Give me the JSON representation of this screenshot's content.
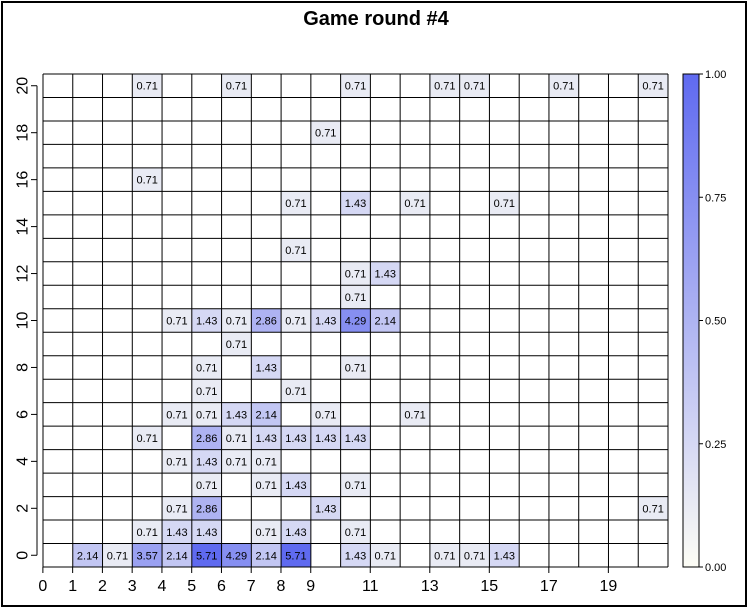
{
  "chart_data": {
    "type": "heatmap",
    "title": "Game round #4",
    "x_ticks": [
      0,
      1,
      2,
      3,
      4,
      5,
      6,
      7,
      8,
      9,
      11,
      13,
      15,
      17,
      19
    ],
    "y_ticks": [
      0,
      2,
      4,
      6,
      8,
      10,
      12,
      14,
      16,
      18,
      20
    ],
    "x_range": [
      0,
      20
    ],
    "y_range": [
      0,
      20
    ],
    "color_scale": {
      "min": 0,
      "max": 1,
      "ticks": [
        "0.00",
        "0.25",
        "0.50",
        "0.75",
        "1.00"
      ],
      "low_color": "#fdfdf5",
      "high_color": "#5f6af0"
    },
    "cells": [
      {
        "x": 3,
        "y": 20,
        "value": 0.71
      },
      {
        "x": 6,
        "y": 20,
        "value": 0.71
      },
      {
        "x": 10,
        "y": 20,
        "value": 0.71
      },
      {
        "x": 13,
        "y": 20,
        "value": 0.71
      },
      {
        "x": 14,
        "y": 20,
        "value": 0.71
      },
      {
        "x": 17,
        "y": 20,
        "value": 0.71
      },
      {
        "x": 20,
        "y": 20,
        "value": 0.71
      },
      {
        "x": 9,
        "y": 18,
        "value": 0.71
      },
      {
        "x": 3,
        "y": 16,
        "value": 0.71
      },
      {
        "x": 8,
        "y": 15,
        "value": 0.71
      },
      {
        "x": 10,
        "y": 15,
        "value": 1.43
      },
      {
        "x": 12,
        "y": 15,
        "value": 0.71
      },
      {
        "x": 15,
        "y": 15,
        "value": 0.71
      },
      {
        "x": 8,
        "y": 13,
        "value": 0.71
      },
      {
        "x": 10,
        "y": 12,
        "value": 0.71
      },
      {
        "x": 11,
        "y": 12,
        "value": 1.43
      },
      {
        "x": 10,
        "y": 11,
        "value": 0.71
      },
      {
        "x": 4,
        "y": 10,
        "value": 0.71
      },
      {
        "x": 5,
        "y": 10,
        "value": 1.43
      },
      {
        "x": 6,
        "y": 10,
        "value": 0.71
      },
      {
        "x": 7,
        "y": 10,
        "value": 2.86
      },
      {
        "x": 8,
        "y": 10,
        "value": 0.71
      },
      {
        "x": 9,
        "y": 10,
        "value": 1.43
      },
      {
        "x": 10,
        "y": 10,
        "value": 4.29
      },
      {
        "x": 11,
        "y": 10,
        "value": 2.14
      },
      {
        "x": 6,
        "y": 9,
        "value": 0.71
      },
      {
        "x": 5,
        "y": 8,
        "value": 0.71
      },
      {
        "x": 7,
        "y": 8,
        "value": 1.43
      },
      {
        "x": 10,
        "y": 8,
        "value": 0.71
      },
      {
        "x": 5,
        "y": 7,
        "value": 0.71
      },
      {
        "x": 8,
        "y": 7,
        "value": 0.71
      },
      {
        "x": 4,
        "y": 6,
        "value": 0.71
      },
      {
        "x": 5,
        "y": 6,
        "value": 0.71
      },
      {
        "x": 6,
        "y": 6,
        "value": 1.43
      },
      {
        "x": 7,
        "y": 6,
        "value": 2.14
      },
      {
        "x": 9,
        "y": 6,
        "value": 0.71
      },
      {
        "x": 12,
        "y": 6,
        "value": 0.71
      },
      {
        "x": 3,
        "y": 5,
        "value": 0.71
      },
      {
        "x": 5,
        "y": 5,
        "value": 2.86
      },
      {
        "x": 6,
        "y": 5,
        "value": 0.71
      },
      {
        "x": 7,
        "y": 5,
        "value": 1.43
      },
      {
        "x": 8,
        "y": 5,
        "value": 1.43
      },
      {
        "x": 9,
        "y": 5,
        "value": 1.43
      },
      {
        "x": 10,
        "y": 5,
        "value": 1.43
      },
      {
        "x": 4,
        "y": 4,
        "value": 0.71
      },
      {
        "x": 5,
        "y": 4,
        "value": 1.43
      },
      {
        "x": 6,
        "y": 4,
        "value": 0.71
      },
      {
        "x": 7,
        "y": 4,
        "value": 0.71
      },
      {
        "x": 5,
        "y": 3,
        "value": 0.71
      },
      {
        "x": 7,
        "y": 3,
        "value": 0.71
      },
      {
        "x": 8,
        "y": 3,
        "value": 1.43
      },
      {
        "x": 10,
        "y": 3,
        "value": 0.71
      },
      {
        "x": 4,
        "y": 2,
        "value": 0.71
      },
      {
        "x": 5,
        "y": 2,
        "value": 2.86
      },
      {
        "x": 9,
        "y": 2,
        "value": 1.43
      },
      {
        "x": 20,
        "y": 2,
        "value": 0.71
      },
      {
        "x": 3,
        "y": 1,
        "value": 0.71
      },
      {
        "x": 4,
        "y": 1,
        "value": 1.43
      },
      {
        "x": 5,
        "y": 1,
        "value": 1.43
      },
      {
        "x": 7,
        "y": 1,
        "value": 0.71
      },
      {
        "x": 8,
        "y": 1,
        "value": 1.43
      },
      {
        "x": 10,
        "y": 1,
        "value": 0.71
      },
      {
        "x": 1,
        "y": 0,
        "value": 2.14
      },
      {
        "x": 2,
        "y": 0,
        "value": 0.71
      },
      {
        "x": 3,
        "y": 0,
        "value": 3.57
      },
      {
        "x": 4,
        "y": 0,
        "value": 2.14
      },
      {
        "x": 5,
        "y": 0,
        "value": 5.71
      },
      {
        "x": 6,
        "y": 0,
        "value": 4.29
      },
      {
        "x": 7,
        "y": 0,
        "value": 2.14
      },
      {
        "x": 8,
        "y": 0,
        "value": 5.71
      },
      {
        "x": 10,
        "y": 0,
        "value": 1.43
      },
      {
        "x": 11,
        "y": 0,
        "value": 0.71
      },
      {
        "x": 13,
        "y": 0,
        "value": 0.71
      },
      {
        "x": 14,
        "y": 0,
        "value": 0.71
      },
      {
        "x": 15,
        "y": 0,
        "value": 1.43
      }
    ]
  }
}
